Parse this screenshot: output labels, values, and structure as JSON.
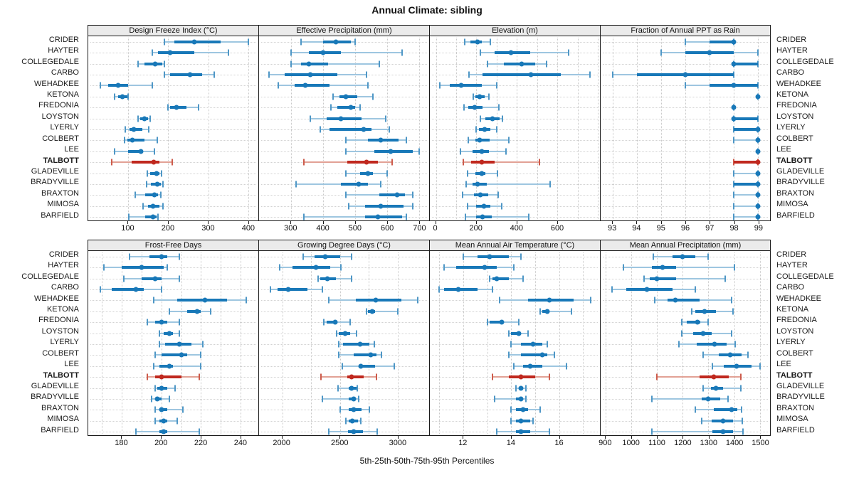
{
  "title": "Annual Climate: sibling",
  "xlabel": "5th-25th-50th-75th-95th Percentiles",
  "colors": {
    "series_blue": "#1878b8",
    "whisker_blue": "#9ec6e0",
    "cap_blue": "#4f97c6",
    "highlight_red": "#c0281e",
    "whisker_red": "#e2a195",
    "strip_bg": "#ebebeb",
    "grid": "#c9c9c9",
    "border": "#1a1a1a"
  },
  "chart_data": {
    "type": "dotplot",
    "title": "Annual Climate: sibling",
    "xlabel": "5th-25th-50th-75th-95th Percentiles",
    "legend_note": "whisker p5-p95, thick bar p25-p75, dot p50",
    "percentiles": [
      5,
      25,
      50,
      75,
      95
    ],
    "sites": [
      "CRIDER",
      "HAYTER",
      "COLLEGEDALE",
      "CARBO",
      "WEHADKEE",
      "KETONA",
      "FREDONIA",
      "LOYSTON",
      "LYERLY",
      "COLBERT",
      "LEE",
      "TALBOTT",
      "GLADEVILLE",
      "BRADYVILLE",
      "BRAXTON",
      "MIMOSA",
      "BARFIELD"
    ],
    "highlight_site": "TALBOTT",
    "panels": [
      {
        "title": "Design Freeze Index (°C)",
        "grid_row": 0,
        "grid_col": 0,
        "xlim": [
          0,
          425
        ],
        "grid": [
          100,
          200,
          300,
          400
        ],
        "ticks": [
          100,
          200,
          300,
          400
        ],
        "values": [
          [
            190,
            215,
            265,
            330,
            400
          ],
          [
            160,
            175,
            205,
            265,
            350
          ],
          [
            125,
            140,
            168,
            185,
            190
          ],
          [
            190,
            205,
            255,
            285,
            315
          ],
          [
            30,
            50,
            75,
            100,
            160
          ],
          [
            65,
            75,
            85,
            97,
            100
          ],
          [
            200,
            205,
            220,
            245,
            275
          ],
          [
            125,
            130,
            140,
            150,
            155
          ],
          [
            93,
            103,
            114,
            135,
            152
          ],
          [
            90,
            97,
            111,
            140,
            173
          ],
          [
            66,
            100,
            132,
            135,
            166
          ],
          [
            58,
            108,
            163,
            178,
            210
          ],
          [
            148,
            155,
            170,
            178,
            184
          ],
          [
            146,
            156,
            172,
            181,
            187
          ],
          [
            118,
            142,
            165,
            174,
            181
          ],
          [
            137,
            149,
            161,
            178,
            187
          ],
          [
            102,
            142,
            161,
            170,
            175
          ]
        ]
      },
      {
        "title": "Effective Precipitation (mm)",
        "grid_row": 0,
        "grid_col": 1,
        "xlim": [
          200,
          730
        ],
        "grid": [
          300,
          400,
          500,
          600,
          700
        ],
        "ticks": [
          300,
          400,
          500,
          600,
          700
        ],
        "values": [
          [
            330,
            400,
            440,
            485,
            500
          ],
          [
            300,
            355,
            400,
            455,
            645
          ],
          [
            300,
            330,
            355,
            415,
            575
          ],
          [
            230,
            280,
            360,
            445,
            535
          ],
          [
            260,
            310,
            345,
            420,
            540
          ],
          [
            430,
            450,
            470,
            505,
            555
          ],
          [
            425,
            445,
            485,
            500,
            515
          ],
          [
            360,
            410,
            455,
            520,
            595
          ],
          [
            390,
            420,
            525,
            550,
            605
          ],
          [
            470,
            540,
            580,
            635,
            660
          ],
          [
            470,
            560,
            610,
            680,
            700
          ],
          [
            340,
            475,
            535,
            570,
            615
          ],
          [
            470,
            515,
            540,
            555,
            600
          ],
          [
            315,
            455,
            510,
            540,
            580
          ],
          [
            470,
            575,
            630,
            655,
            680
          ],
          [
            480,
            530,
            580,
            650,
            680
          ],
          [
            340,
            530,
            570,
            645,
            660
          ]
        ]
      },
      {
        "title": "Elevation (m)",
        "grid_row": 0,
        "grid_col": 2,
        "xlim": [
          -30,
          810
        ],
        "grid": [
          0,
          100,
          200,
          300,
          400,
          500,
          600,
          700,
          800
        ],
        "ticks": [
          0,
          200,
          400,
          600
        ],
        "values": [
          [
            143,
            170,
            205,
            228,
            270
          ],
          [
            220,
            290,
            370,
            465,
            655
          ],
          [
            255,
            335,
            425,
            490,
            545
          ],
          [
            165,
            230,
            470,
            615,
            760
          ],
          [
            20,
            70,
            125,
            225,
            300
          ],
          [
            185,
            195,
            215,
            240,
            260
          ],
          [
            140,
            160,
            190,
            230,
            310
          ],
          [
            220,
            245,
            280,
            315,
            330
          ],
          [
            200,
            212,
            240,
            270,
            300
          ],
          [
            160,
            195,
            215,
            265,
            360
          ],
          [
            120,
            180,
            228,
            263,
            347
          ],
          [
            135,
            175,
            225,
            290,
            512
          ],
          [
            155,
            195,
            225,
            245,
            305
          ],
          [
            150,
            180,
            207,
            250,
            565
          ],
          [
            130,
            187,
            220,
            257,
            306
          ],
          [
            158,
            200,
            236,
            269,
            324
          ],
          [
            145,
            200,
            230,
            275,
            460
          ]
        ]
      },
      {
        "title": "Fraction of Annual PPT as Rain",
        "grid_row": 0,
        "grid_col": 3,
        "xlim": [
          92.5,
          99.5
        ],
        "grid": [
          93,
          94,
          95,
          96,
          97,
          98,
          99
        ],
        "ticks": [
          93,
          94,
          95,
          96,
          97,
          98,
          99
        ],
        "values": [
          [
            96,
            97,
            98,
            98,
            98
          ],
          [
            95,
            96,
            97,
            98,
            99
          ],
          [
            98,
            98,
            98,
            99,
            99
          ],
          [
            93,
            94,
            96,
            98,
            98
          ],
          [
            96,
            97,
            98,
            99,
            99
          ],
          [
            99,
            99,
            99,
            99,
            99
          ],
          [
            98,
            98,
            98,
            98,
            98
          ],
          [
            98,
            98,
            98,
            99,
            99
          ],
          [
            98,
            98,
            99,
            99,
            99
          ],
          [
            98,
            99,
            99,
            99,
            99
          ],
          [
            99,
            99,
            99,
            99,
            99
          ],
          [
            98,
            98,
            99,
            99,
            99
          ],
          [
            98,
            99,
            99,
            99,
            99
          ],
          [
            98,
            98,
            99,
            99,
            99
          ],
          [
            98,
            99,
            99,
            99,
            99
          ],
          [
            98,
            99,
            99,
            99,
            99
          ],
          [
            98,
            99,
            99,
            99,
            99
          ]
        ]
      },
      {
        "title": "Frost-Free Days",
        "grid_row": 1,
        "grid_col": 0,
        "xlim": [
          163,
          249
        ],
        "grid": [
          170,
          180,
          190,
          200,
          210,
          220,
          230,
          240
        ],
        "ticks": [
          180,
          200,
          220,
          240
        ],
        "values": [
          [
            184,
            194,
            200,
            203,
            209
          ],
          [
            171,
            180,
            190,
            201,
            203
          ],
          [
            181,
            190,
            197,
            200,
            209
          ],
          [
            169,
            175,
            187,
            191,
            200
          ],
          [
            196,
            208,
            222,
            233,
            243
          ],
          [
            204,
            213,
            218,
            220,
            225
          ],
          [
            193,
            197,
            200,
            203,
            209
          ],
          [
            199,
            201,
            204,
            206,
            209
          ],
          [
            199,
            202,
            209,
            215,
            221
          ],
          [
            197,
            200,
            210,
            213,
            220
          ],
          [
            196,
            199,
            204,
            206,
            220
          ],
          [
            193,
            197,
            200,
            210,
            219
          ],
          [
            197,
            198,
            200,
            203,
            207
          ],
          [
            195,
            197,
            198,
            200,
            204
          ],
          [
            197,
            199,
            200,
            203,
            211
          ],
          [
            197,
            199,
            201,
            203,
            208
          ],
          [
            187,
            199,
            201,
            203,
            219
          ]
        ]
      },
      {
        "title": "Growing Degree Days (°C)",
        "grid_row": 1,
        "grid_col": 1,
        "xlim": [
          1800,
          3270
        ],
        "grid": [
          2000,
          2250,
          2500,
          2750,
          3000
        ],
        "ticks": [
          2000,
          2500,
          3000
        ],
        "values": [
          [
            2180,
            2280,
            2370,
            2500,
            2600
          ],
          [
            1980,
            2090,
            2290,
            2415,
            2510
          ],
          [
            2310,
            2330,
            2390,
            2465,
            2600
          ],
          [
            1900,
            1960,
            2055,
            2220,
            2350
          ],
          [
            2405,
            2635,
            2810,
            3030,
            3170
          ],
          [
            2730,
            2740,
            2775,
            2800,
            3000
          ],
          [
            2360,
            2385,
            2460,
            2475,
            2590
          ],
          [
            2470,
            2490,
            2545,
            2585,
            2640
          ],
          [
            2490,
            2525,
            2675,
            2755,
            2795
          ],
          [
            2490,
            2615,
            2765,
            2815,
            2855
          ],
          [
            2520,
            2660,
            2680,
            2805,
            2970
          ],
          [
            2335,
            2560,
            2600,
            2705,
            2815
          ],
          [
            2485,
            2575,
            2600,
            2645,
            2650
          ],
          [
            2345,
            2575,
            2615,
            2635,
            2660
          ],
          [
            2500,
            2575,
            2620,
            2685,
            2755
          ],
          [
            2550,
            2575,
            2605,
            2655,
            2680
          ],
          [
            2400,
            2570,
            2620,
            2695,
            2820
          ]
        ]
      },
      {
        "title": "Mean Annual Air Temperature (°C)",
        "grid_row": 1,
        "grid_col": 2,
        "xlim": [
          10.6,
          17.7
        ],
        "grid": [
          11,
          12,
          13,
          14,
          15,
          16,
          17
        ],
        "ticks": [
          12,
          14,
          16
        ],
        "values": [
          [
            12.0,
            12.6,
            13.1,
            13.9,
            14.4
          ],
          [
            11.2,
            11.7,
            12.9,
            13.4,
            14.1
          ],
          [
            13.1,
            13.2,
            13.4,
            13.9,
            14.5
          ],
          [
            11.0,
            11.2,
            11.8,
            12.6,
            13.2
          ],
          [
            13.5,
            14.7,
            15.6,
            16.6,
            17.3
          ],
          [
            15.2,
            15.3,
            15.5,
            15.6,
            16.5
          ],
          [
            13.0,
            13.1,
            13.6,
            13.7,
            14.3
          ],
          [
            13.9,
            14.0,
            14.3,
            14.4,
            14.7
          ],
          [
            14.0,
            14.4,
            14.9,
            15.3,
            15.5
          ],
          [
            13.9,
            14.4,
            15.3,
            15.5,
            15.8
          ],
          [
            14.1,
            14.5,
            14.8,
            15.3,
            16.3
          ],
          [
            13.2,
            13.9,
            14.4,
            15.0,
            15.6
          ],
          [
            14.2,
            14.3,
            14.4,
            14.5,
            14.6
          ],
          [
            13.3,
            14.2,
            14.4,
            14.5,
            14.6
          ],
          [
            14.0,
            14.2,
            14.5,
            14.7,
            15.2
          ],
          [
            14.0,
            14.2,
            14.4,
            14.8,
            14.9
          ],
          [
            13.4,
            14.2,
            14.4,
            14.8,
            15.6
          ]
        ]
      },
      {
        "title": "Mean Annual Precipitation (mm)",
        "grid_row": 1,
        "grid_col": 3,
        "xlim": [
          880,
          1540
        ],
        "grid": [
          900,
          1000,
          1100,
          1200,
          1300,
          1400,
          1500
        ],
        "ticks": [
          900,
          1000,
          1100,
          1200,
          1300,
          1400,
          1500
        ],
        "values": [
          [
            1085,
            1160,
            1200,
            1250,
            1300
          ],
          [
            970,
            1080,
            1120,
            1175,
            1400
          ],
          [
            1050,
            1070,
            1100,
            1175,
            1365
          ],
          [
            925,
            980,
            1060,
            1160,
            1250
          ],
          [
            1090,
            1140,
            1170,
            1265,
            1390
          ],
          [
            1235,
            1250,
            1285,
            1330,
            1395
          ],
          [
            1195,
            1215,
            1258,
            1267,
            1300
          ],
          [
            1197,
            1240,
            1280,
            1313,
            1390
          ],
          [
            1185,
            1255,
            1325,
            1370,
            1405
          ],
          [
            1280,
            1340,
            1385,
            1430,
            1455
          ],
          [
            1315,
            1360,
            1410,
            1468,
            1500
          ],
          [
            1100,
            1265,
            1320,
            1380,
            1425
          ],
          [
            1280,
            1310,
            1330,
            1358,
            1425
          ],
          [
            1080,
            1275,
            1300,
            1345,
            1375
          ],
          [
            1250,
            1320,
            1390,
            1413,
            1430
          ],
          [
            1275,
            1313,
            1358,
            1395,
            1433
          ],
          [
            1080,
            1315,
            1358,
            1395,
            1435
          ]
        ]
      }
    ]
  }
}
